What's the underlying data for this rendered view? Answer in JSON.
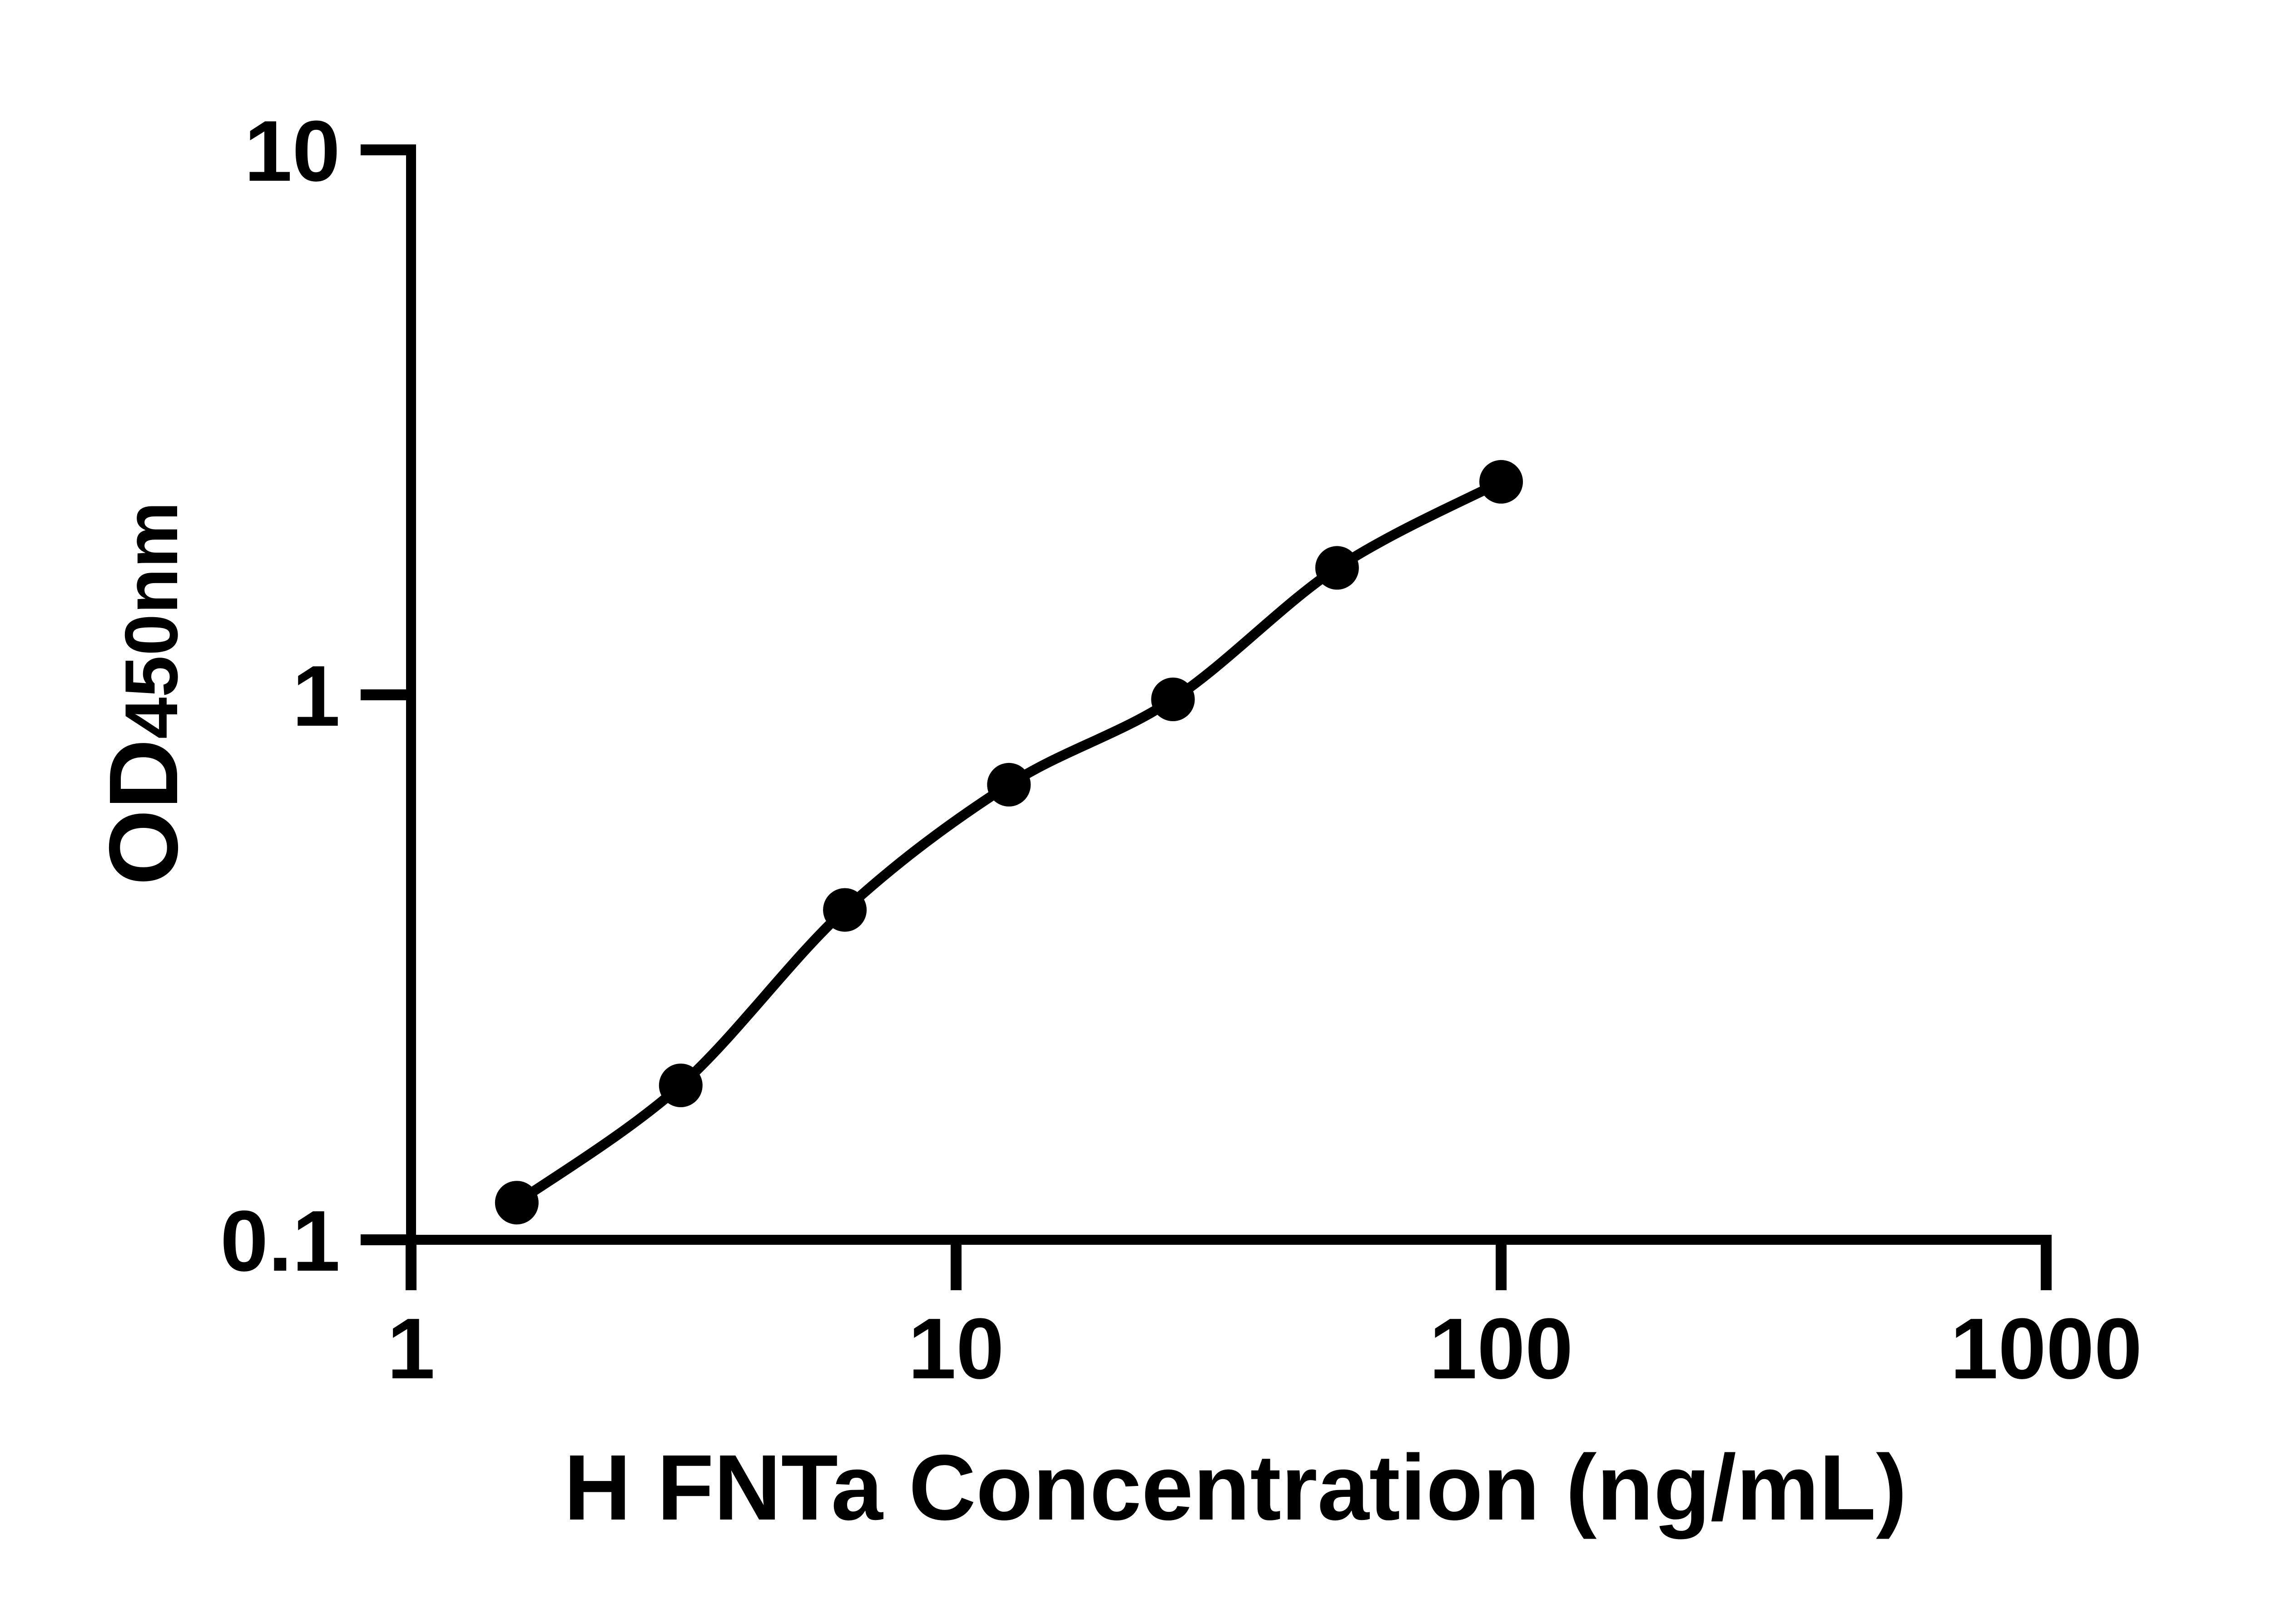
{
  "figure": {
    "background": "#ffffff",
    "ink_color": "#000000"
  },
  "chart_data": {
    "type": "scatter",
    "title": "",
    "xlabel": "H FNTa Concentration (ng/mL)",
    "ylabel": "OD",
    "ylabel_sub": "450nm",
    "x_scale": "log",
    "y_scale": "log",
    "xlim": [
      1,
      1000
    ],
    "ylim": [
      0.1,
      10
    ],
    "grid": false,
    "legend": "none",
    "x_ticks": [
      {
        "value": 1,
        "label": "1"
      },
      {
        "value": 10,
        "label": "10"
      },
      {
        "value": 100,
        "label": "100"
      },
      {
        "value": 1000,
        "label": "1000"
      }
    ],
    "y_ticks": [
      {
        "value": 0.1,
        "label": "0.1"
      },
      {
        "value": 1,
        "label": "1"
      },
      {
        "value": 10,
        "label": "10"
      }
    ],
    "series": [
      {
        "marker": "circle",
        "marker_color": "#000000",
        "line_color": "#000000",
        "curve": "smooth",
        "points": [
          {
            "x": 1.563,
            "y": 0.117
          },
          {
            "x": 3.125,
            "y": 0.192
          },
          {
            "x": 6.25,
            "y": 0.403
          },
          {
            "x": 12.5,
            "y": 0.684
          },
          {
            "x": 25,
            "y": 0.981
          },
          {
            "x": 50,
            "y": 1.71
          },
          {
            "x": 100,
            "y": 2.46
          }
        ]
      }
    ]
  }
}
